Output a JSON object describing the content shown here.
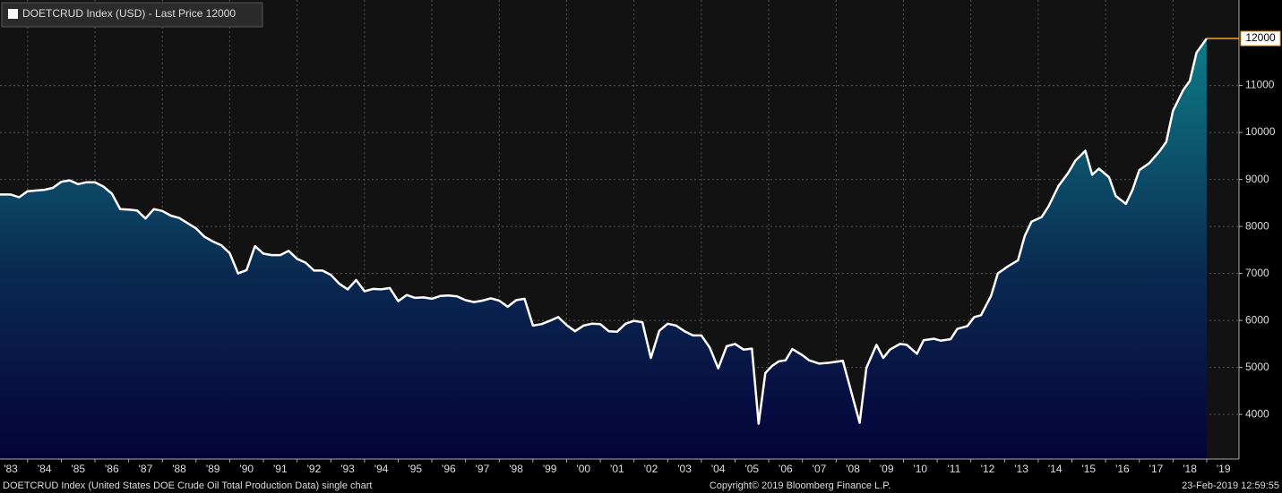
{
  "chart_data": {
    "type": "area",
    "title": "DOETCRUD Index (USD) - Last Price 12000",
    "footer": "DOETCRUD Index (United States DOE Crude Oil Total Production Data) single chart",
    "copyright": "Copyright© 2019 Bloomberg Finance L.P.",
    "timestamp": "23-Feb-2019 12:59:55",
    "last_price": 12000,
    "line_color": "#ffffff",
    "last_price_color": "#f7a21b",
    "grid": true,
    "xlim": [
      1983.18,
      2019.96
    ],
    "ylim": [
      3050,
      12820
    ],
    "yticks": [
      4000,
      5000,
      6000,
      7000,
      8000,
      9000,
      10000,
      11000
    ],
    "xticks": [
      {
        "value": 1983,
        "label": "'83"
      },
      {
        "value": 1984,
        "label": "'84"
      },
      {
        "value": 1985,
        "label": "'85"
      },
      {
        "value": 1986,
        "label": "'86"
      },
      {
        "value": 1987,
        "label": "'87"
      },
      {
        "value": 1988,
        "label": "'88"
      },
      {
        "value": 1989,
        "label": "'89"
      },
      {
        "value": 1990,
        "label": "'90"
      },
      {
        "value": 1991,
        "label": "'91"
      },
      {
        "value": 1992,
        "label": "'92"
      },
      {
        "value": 1993,
        "label": "'93"
      },
      {
        "value": 1994,
        "label": "'94"
      },
      {
        "value": 1995,
        "label": "'95"
      },
      {
        "value": 1996,
        "label": "'96"
      },
      {
        "value": 1997,
        "label": "'97"
      },
      {
        "value": 1998,
        "label": "'98"
      },
      {
        "value": 1999,
        "label": "'99"
      },
      {
        "value": 2000,
        "label": "'00"
      },
      {
        "value": 2001,
        "label": "'01"
      },
      {
        "value": 2002,
        "label": "'02"
      },
      {
        "value": 2003,
        "label": "'03"
      },
      {
        "value": 2004,
        "label": "'04"
      },
      {
        "value": 2005,
        "label": "'05"
      },
      {
        "value": 2006,
        "label": "'06"
      },
      {
        "value": 2007,
        "label": "'07"
      },
      {
        "value": 2008,
        "label": "'08"
      },
      {
        "value": 2009,
        "label": "'09"
      },
      {
        "value": 2010,
        "label": "'10"
      },
      {
        "value": 2011,
        "label": "'11"
      },
      {
        "value": 2012,
        "label": "'12"
      },
      {
        "value": 2013,
        "label": "'13"
      },
      {
        "value": 2014,
        "label": "'14"
      },
      {
        "value": 2015,
        "label": "'15"
      },
      {
        "value": 2016,
        "label": "'16"
      },
      {
        "value": 2017,
        "label": "'17"
      },
      {
        "value": 2018,
        "label": "'18"
      },
      {
        "value": 2019,
        "label": "'19"
      }
    ],
    "x": [
      1983.0,
      1983.5,
      1983.75,
      1984.0,
      1984.5,
      1984.75,
      1985.0,
      1985.25,
      1985.5,
      1985.75,
      1986.0,
      1986.25,
      1986.5,
      1986.75,
      1987.0,
      1987.25,
      1987.5,
      1987.75,
      1988.0,
      1988.25,
      1988.5,
      1988.75,
      1989.0,
      1989.25,
      1989.5,
      1989.75,
      1990.0,
      1990.25,
      1990.5,
      1990.75,
      1991.0,
      1991.25,
      1991.5,
      1991.75,
      1992.0,
      1992.25,
      1992.5,
      1992.75,
      1993.0,
      1993.25,
      1993.5,
      1993.75,
      1994.0,
      1994.25,
      1994.5,
      1994.75,
      1995.0,
      1995.25,
      1995.5,
      1995.75,
      1996.0,
      1996.25,
      1996.5,
      1996.75,
      1997.0,
      1997.25,
      1997.5,
      1997.75,
      1998.0,
      1998.25,
      1998.5,
      1998.75,
      1999.0,
      1999.25,
      1999.5,
      1999.75,
      2000.0,
      2000.25,
      2000.5,
      2000.75,
      2001.0,
      2001.25,
      2001.5,
      2001.75,
      2002.0,
      2002.25,
      2002.5,
      2002.75,
      2003.0,
      2003.25,
      2003.5,
      2003.75,
      2004.0,
      2004.25,
      2004.5,
      2004.75,
      2005.0,
      2005.25,
      2005.5,
      2005.7,
      2005.9,
      2006.1,
      2006.3,
      2006.5,
      2006.7,
      2007.0,
      2007.2,
      2007.5,
      2007.8,
      2008.2,
      2008.7,
      2008.9,
      2009.2,
      2009.4,
      2009.6,
      2009.9,
      2010.1,
      2010.4,
      2010.6,
      2010.9,
      2011.1,
      2011.4,
      2011.6,
      2011.9,
      2012.1,
      2012.3,
      2012.6,
      2012.8,
      2013.1,
      2013.4,
      2013.6,
      2013.8,
      2014.1,
      2014.3,
      2014.6,
      2014.9,
      2015.1,
      2015.4,
      2015.6,
      2015.8,
      2016.1,
      2016.3,
      2016.6,
      2016.8,
      2017.0,
      2017.3,
      2017.6,
      2017.8,
      2018.0,
      2018.3,
      2018.5,
      2018.7,
      2019.0
    ],
    "values": [
      8680,
      8680,
      8620,
      8750,
      8780,
      8820,
      8950,
      8980,
      8900,
      8940,
      8940,
      8850,
      8700,
      8370,
      8360,
      8340,
      8170,
      8370,
      8330,
      8230,
      8180,
      8070,
      7960,
      7780,
      7680,
      7600,
      7430,
      7000,
      7070,
      7580,
      7420,
      7390,
      7390,
      7480,
      7310,
      7230,
      7060,
      7060,
      6970,
      6780,
      6660,
      6860,
      6620,
      6670,
      6660,
      6690,
      6410,
      6540,
      6480,
      6490,
      6460,
      6520,
      6530,
      6510,
      6430,
      6390,
      6420,
      6470,
      6420,
      6290,
      6430,
      6460,
      5890,
      5920,
      5990,
      6070,
      5900,
      5770,
      5890,
      5930,
      5920,
      5770,
      5760,
      5930,
      5990,
      5960,
      5200,
      5780,
      5930,
      5890,
      5770,
      5680,
      5680,
      5420,
      4980,
      5450,
      5500,
      5380,
      5400,
      3800,
      4880,
      5030,
      5130,
      5150,
      5390,
      5260,
      5150,
      5080,
      5100,
      5140,
      3820,
      4990,
      5480,
      5200,
      5380,
      5500,
      5480,
      5290,
      5580,
      5610,
      5570,
      5600,
      5820,
      5880,
      6070,
      6110,
      6520,
      7000,
      7150,
      7280,
      7800,
      8100,
      8200,
      8420,
      8860,
      9150,
      9400,
      9610,
      9100,
      9230,
      9050,
      8650,
      8480,
      8780,
      9200,
      9350,
      9600,
      9800,
      10460,
      10900,
      11100,
      11700,
      12000
    ]
  }
}
